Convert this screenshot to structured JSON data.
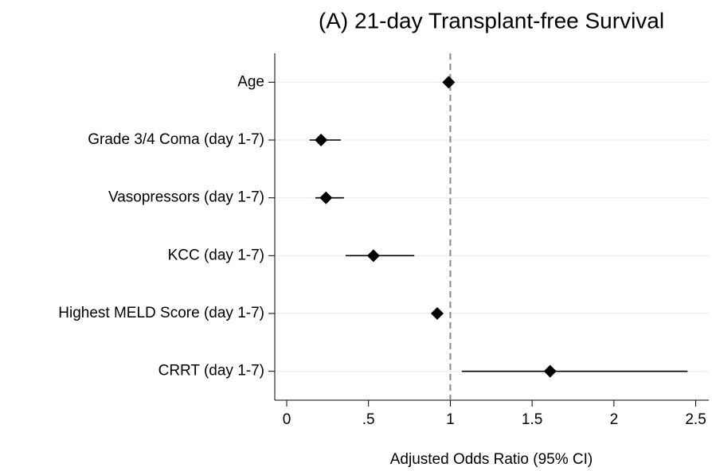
{
  "chart_data": {
    "type": "forest",
    "title": "(A) 21-day Transplant-free Survival",
    "x_label": "Adjusted Odds Ratio (95% CI)",
    "categories": [
      "Age",
      "Grade 3/4 Coma (day 1-7)",
      "Vasopressors (day 1-7)",
      "KCC (day 1-7)",
      "Highest MELD Score (day 1-7)",
      "CRRT (day 1-7)"
    ],
    "values": [
      0.99,
      0.21,
      0.24,
      0.53,
      0.92,
      1.61
    ],
    "lower": [
      0.98,
      0.14,
      0.175,
      0.36,
      0.9,
      1.07
    ],
    "upper": [
      1.0,
      0.33,
      0.35,
      0.78,
      0.94,
      2.45
    ],
    "color": "#000000",
    "reference_line": 1,
    "xlim": [
      -0.073,
      2.58
    ],
    "xticks": [
      0,
      {
        "value": 0.5,
        "label": ".5"
      },
      1,
      1.5,
      2,
      2.5
    ],
    "grid": true
  }
}
